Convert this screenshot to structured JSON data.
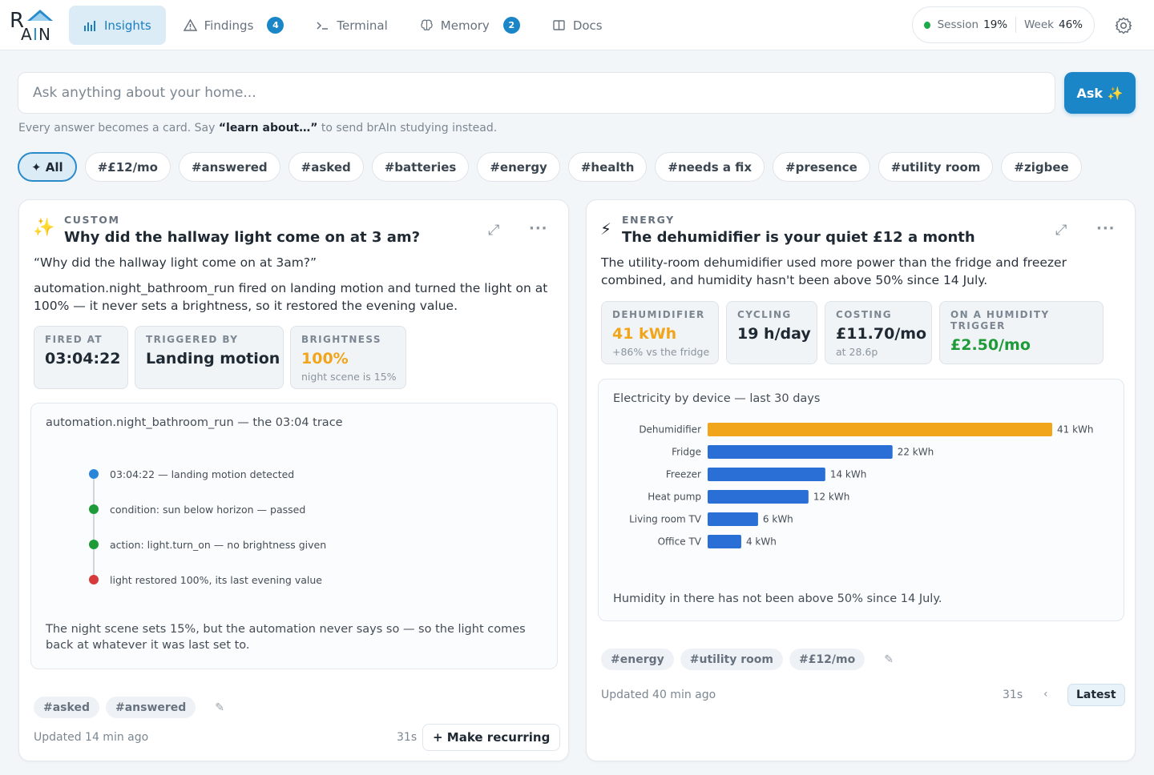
{
  "app": {
    "logo_text": "BRAIN"
  },
  "nav": [
    {
      "label": "Insights",
      "icon": "bar-chart-icon",
      "active": true
    },
    {
      "label": "Findings",
      "icon": "warning-triangle-icon",
      "badge": "4"
    },
    {
      "label": "Terminal",
      "icon": "terminal-icon"
    },
    {
      "label": "Memory",
      "icon": "brain-icon",
      "badge": "2"
    },
    {
      "label": "Docs",
      "icon": "book-icon"
    }
  ],
  "usage": {
    "session_label": "Session",
    "session_value": "19%",
    "week_label": "Week",
    "week_value": "46%",
    "status_color": "#1eaa4a"
  },
  "search": {
    "placeholder": "Ask anything about your home...",
    "button_label": "Ask ✨"
  },
  "hint": {
    "prefix": "Every answer becomes a card. Say ",
    "keyword": "“learn about…”",
    "suffix": " to send brAIn studying instead."
  },
  "tags": [
    "✦ All",
    "#£12/mo",
    "#answered",
    "#asked",
    "#batteries",
    "#energy",
    "#health",
    "#needs a fix",
    "#presence",
    "#utility room",
    "#zigbee"
  ],
  "cards": {
    "left": {
      "icon": "✨",
      "kicker": "CUSTOM",
      "title": "Why did the hallway light come on at 3 am?",
      "quote": "“Why did the hallway light come on at 3am?”",
      "answer": "automation.night_bathroom_run fired on landing motion and turned the light on at 100% — it never sets a brightness, so it restored the evening value.",
      "stats": [
        {
          "label": "FIRED AT",
          "value": "03:04:22"
        },
        {
          "label": "TRIGGERED BY",
          "value": "Landing motion"
        },
        {
          "label": "BRIGHTNESS",
          "value": "100%",
          "sub": "night scene is 15%",
          "value_color": "#f0a51a"
        }
      ],
      "trace": {
        "title": "automation.night_bathroom_run — the 03:04 trace",
        "steps": [
          {
            "text": "03:04:22 — landing motion detected",
            "color": "#2a86d8"
          },
          {
            "text": "condition: sun below horizon — passed",
            "color": "#1f9a38"
          },
          {
            "text": "action: light.turn_on — no brightness given",
            "color": "#1f9a38"
          },
          {
            "text": "light restored 100%, its last evening value",
            "color": "#d63a3a"
          }
        ],
        "note": "The night scene sets 15%, but the automation never says so — so the light comes back at whatever it was last set to."
      },
      "chips": [
        "#asked",
        "#answered"
      ],
      "updated": "Updated 14 min ago",
      "timer": "31s",
      "action_label": "+ Make recurring"
    },
    "right": {
      "icon": "⚡",
      "kicker": "ENERGY",
      "title": "The dehumidifier is your quiet £12 a month",
      "summary": "The utility-room dehumidifier used more power than the fridge and freezer combined, and humidity hasn't been above 50% since 14 July.",
      "stats": [
        {
          "label": "DEHUMIDIFIER",
          "value": "41 kWh",
          "sub": "+86% vs the fridge",
          "value_color": "#f0a51a"
        },
        {
          "label": "CYCLING",
          "value": "19 h/day"
        },
        {
          "label": "COSTING",
          "value": "£11.70/mo",
          "sub": "at 28.6p"
        },
        {
          "label": "ON A HUMIDITY TRIGGER",
          "value": "£2.50/mo",
          "value_color": "#1f9a38"
        }
      ],
      "chart_title": "Electricity by device — last 30 days",
      "chart_note": "Humidity in there has not been above 50% since 14 July.",
      "chips": [
        "#energy",
        "#utility room",
        "#£12/mo"
      ],
      "updated": "Updated 40 min ago",
      "timer": "31s",
      "prev_label": "‹",
      "latest_label": "Latest"
    }
  },
  "chart_data": {
    "type": "bar",
    "orientation": "horizontal",
    "title": "Electricity by device — last 30 days",
    "categories": [
      "Dehumidifier",
      "Fridge",
      "Freezer",
      "Heat pump",
      "Living room TV",
      "Office TV"
    ],
    "values": [
      41,
      22,
      14,
      12,
      6,
      4
    ],
    "labels": [
      "41 kWh",
      "22 kWh",
      "14 kWh",
      "12 kWh",
      "6 kWh",
      "4 kWh"
    ],
    "unit": "kWh",
    "colors": [
      "#f0a51a",
      "#2a6fd6",
      "#2a6fd6",
      "#2a6fd6",
      "#2a6fd6",
      "#2a6fd6"
    ],
    "xlim": [
      0,
      41
    ],
    "grid": false
  }
}
